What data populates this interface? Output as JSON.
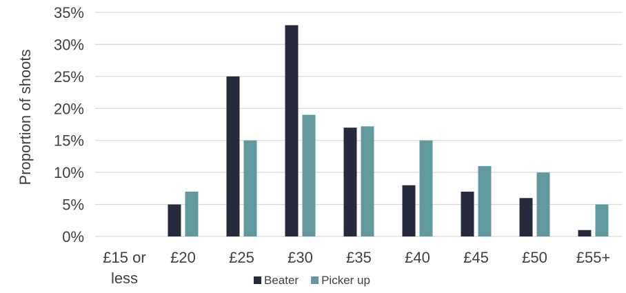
{
  "chart_data": {
    "type": "bar",
    "title": "",
    "xlabel": "",
    "ylabel": "Proportion of shoots",
    "categories": [
      "£15 or less",
      "£20",
      "£25",
      "£30",
      "£35",
      "£40",
      "£45",
      "£50",
      "£55+"
    ],
    "series": [
      {
        "name": "Beater",
        "color": "#262a3d",
        "values": [
          0,
          5,
          25,
          33,
          17,
          8,
          7,
          6,
          1
        ]
      },
      {
        "name": "Picker up",
        "color": "#62999f",
        "values": [
          0,
          7,
          15,
          19,
          17.2,
          15,
          11,
          10,
          5
        ]
      }
    ],
    "ylim": [
      0,
      35
    ],
    "yticks": [
      0,
      5,
      10,
      15,
      20,
      25,
      30,
      35
    ],
    "ytick_suffix": "%",
    "grid": true,
    "legend_position": "bottom"
  },
  "colors": {
    "gridline": "#d9d9d9",
    "text": "#404040"
  }
}
